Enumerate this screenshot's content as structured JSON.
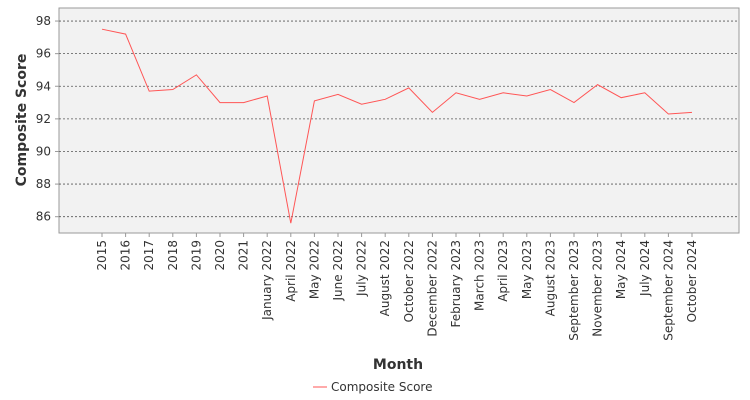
{
  "chart_data": {
    "type": "line",
    "title": "",
    "xlabel": "Month",
    "ylabel": "Composite Score",
    "categories": [
      "2015",
      "2016",
      "2017",
      "2018",
      "2019",
      "2020",
      "2021",
      "January 2022",
      "April 2022",
      "May 2022",
      "June 2022",
      "July 2022",
      "August 2022",
      "October 2022",
      "December 2022",
      "February 2023",
      "March 2023",
      "April 2023",
      "May 2023",
      "August 2023",
      "September 2023",
      "November 2023",
      "May 2024",
      "July 2024",
      "September 2024",
      "October 2024"
    ],
    "series": [
      {
        "name": "Composite Score",
        "color": "#ff5555",
        "values": [
          97.5,
          97.2,
          93.7,
          93.8,
          94.7,
          93.0,
          93.0,
          93.4,
          85.6,
          93.1,
          93.5,
          92.9,
          93.2,
          93.9,
          92.4,
          93.6,
          93.2,
          93.6,
          93.4,
          93.8,
          93.0,
          94.1,
          93.3,
          93.6,
          92.3,
          92.4
        ]
      }
    ],
    "yticks": [
      86,
      88,
      90,
      92,
      94,
      96,
      98
    ],
    "ylim": [
      85.0,
      98.8
    ],
    "grid": true,
    "legend_position": "bottom-center",
    "plot_background": "#f2f2f2"
  }
}
